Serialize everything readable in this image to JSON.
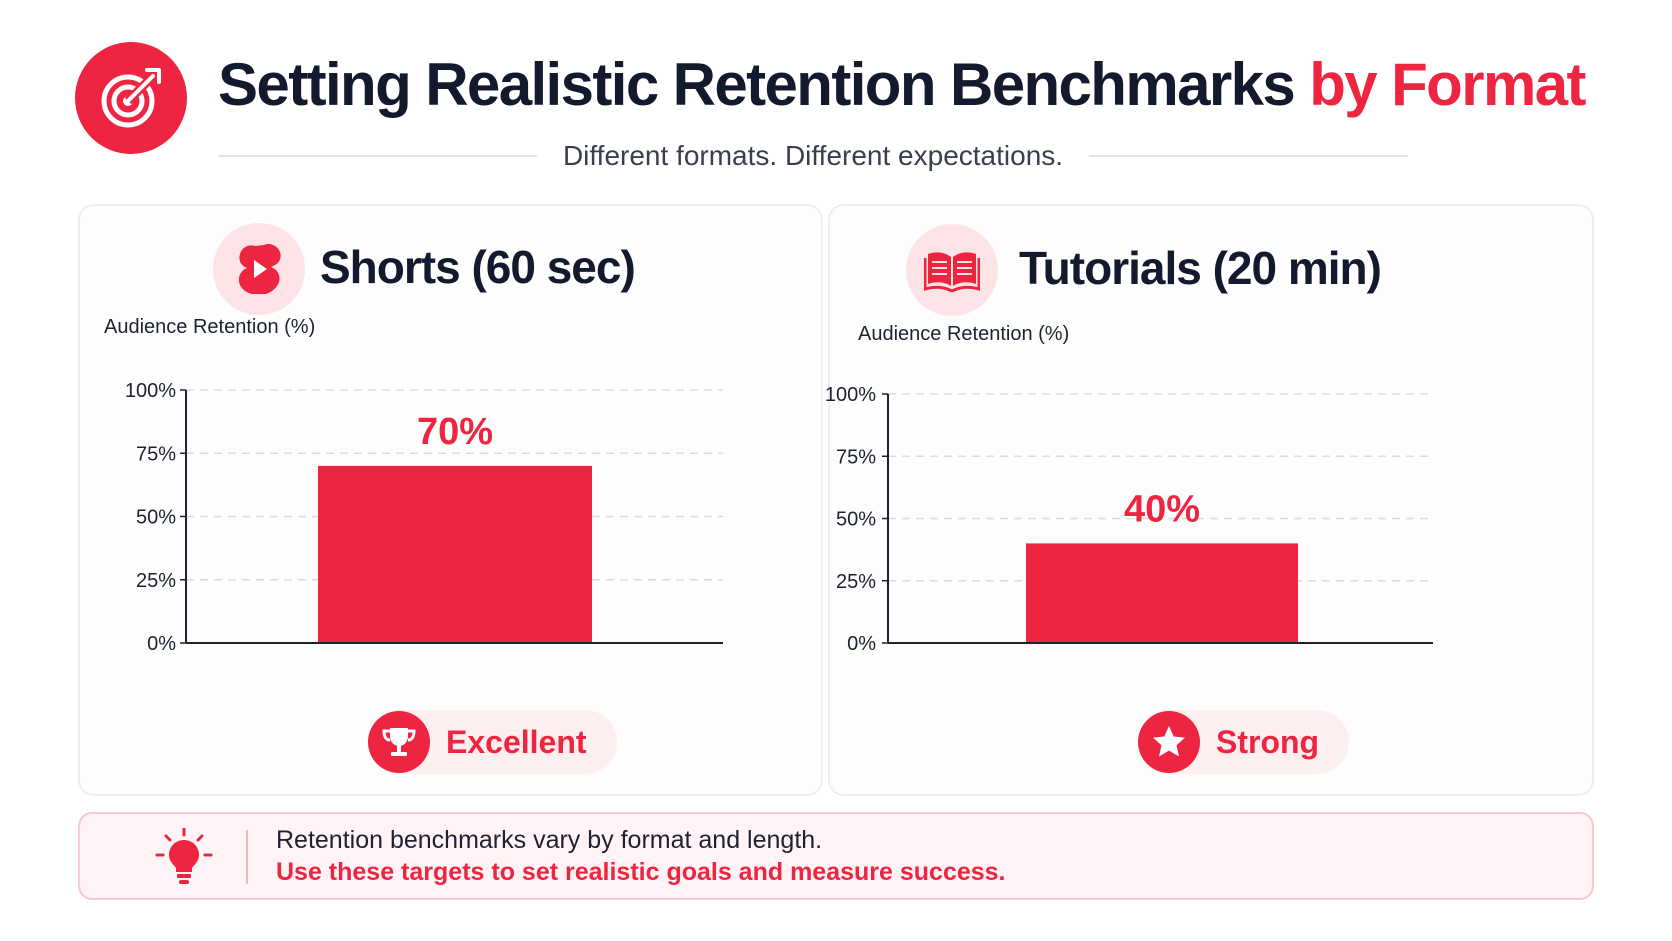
{
  "header": {
    "title_main": "Setting Realistic Retention Benchmarks",
    "title_accent": "by Format",
    "subtitle": "Different formats. Different expectations.",
    "logo_icon": "target-arrow-icon"
  },
  "colors": {
    "accent": "#ee2541",
    "text": "#141a2e",
    "grid": "#d9dbe1"
  },
  "panels": [
    {
      "title": "Shorts (60 sec)",
      "icon": "shorts-play-icon",
      "rating": "Excellent",
      "rating_icon": "trophy-icon"
    },
    {
      "title": "Tutorials (20 min)",
      "icon": "open-book-icon",
      "rating": "Strong",
      "rating_icon": "star-icon"
    }
  ],
  "chart_data": [
    {
      "type": "bar",
      "title": "Shorts (60 sec)",
      "ylabel": "Audience Retention (%)",
      "yticks": [
        "0%",
        "25%",
        "50%",
        "75%",
        "100%"
      ],
      "ylim": [
        0,
        100
      ],
      "grid": true,
      "values": [
        70
      ],
      "value_labels": [
        "70%"
      ],
      "color": "#ee2541"
    },
    {
      "type": "bar",
      "title": "Tutorials (20 min)",
      "ylabel": "Audience Retention (%)",
      "yticks": [
        "0%",
        "25%",
        "50%",
        "75%",
        "100%"
      ],
      "ylim": [
        0,
        100
      ],
      "grid": true,
      "values": [
        40
      ],
      "value_labels": [
        "40%"
      ],
      "color": "#ee2541"
    }
  ],
  "footer": {
    "icon": "lightbulb-icon",
    "line1": "Retention benchmarks vary by format and length.",
    "line2": "Use these targets to set realistic goals and measure success."
  }
}
